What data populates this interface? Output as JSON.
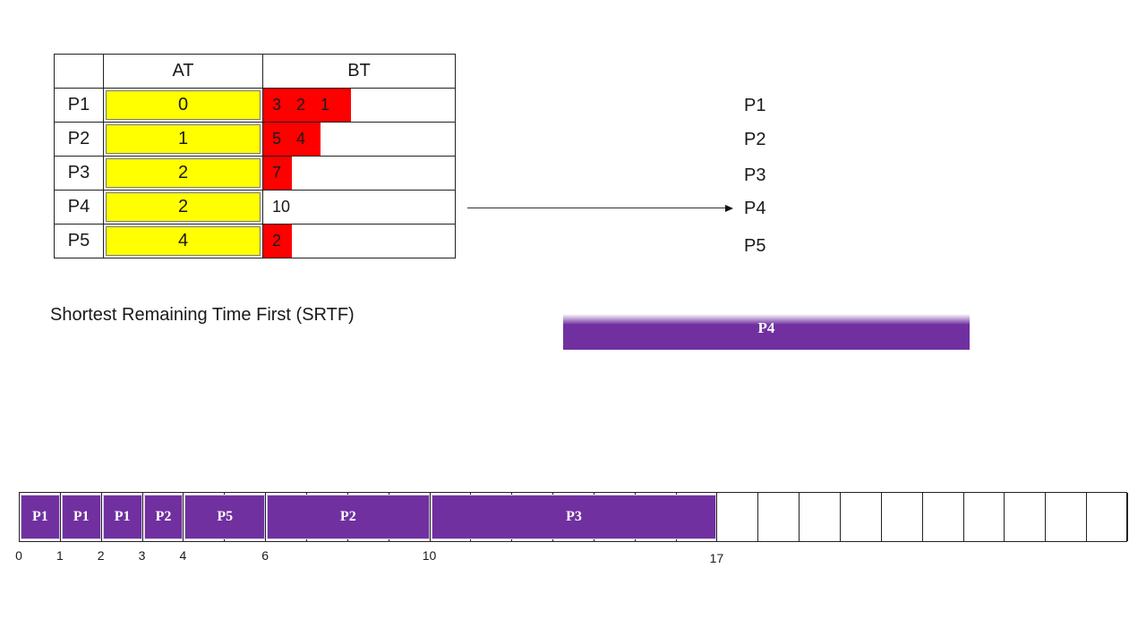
{
  "table": {
    "headers": [
      "",
      "AT",
      "BT"
    ],
    "rows": [
      {
        "process": "P1",
        "at": "0",
        "bt_values": [
          "3",
          "2",
          "1"
        ],
        "bt_fill": "98px"
      },
      {
        "process": "P2",
        "at": "1",
        "bt_values": [
          "5",
          "4"
        ],
        "bt_fill": "64px"
      },
      {
        "process": "P3",
        "at": "2",
        "bt_values": [
          "7"
        ],
        "bt_fill": "32px"
      },
      {
        "process": "P4",
        "at": "2",
        "bt_values": [
          "10"
        ],
        "bt_fill": "0px"
      },
      {
        "process": "P5",
        "at": "4",
        "bt_values": [
          "2"
        ],
        "bt_fill": "32px"
      }
    ]
  },
  "queue": [
    "P1",
    "P2",
    "P3",
    "P4",
    "P5"
  ],
  "algorithm_title": "Shortest Remaining Time First (SRTF)",
  "executing": "P4",
  "gantt": {
    "blocks": [
      {
        "label": "P1",
        "start": 0,
        "end": 1
      },
      {
        "label": "P1",
        "start": 1,
        "end": 2
      },
      {
        "label": "P1",
        "start": 2,
        "end": 3
      },
      {
        "label": "P2",
        "start": 3,
        "end": 4
      },
      {
        "label": "P5",
        "start": 4,
        "end": 6
      },
      {
        "label": "P2",
        "start": 6,
        "end": 10
      },
      {
        "label": "P3",
        "start": 10,
        "end": 17
      }
    ],
    "ticks": [
      "0",
      "1",
      "2",
      "3",
      "4",
      "6",
      "10",
      "17"
    ],
    "total_slots": 27
  },
  "colors": {
    "at_fill": "#ffff00",
    "bt_fill": "#ff0000",
    "process_purple": "#7030a0"
  }
}
